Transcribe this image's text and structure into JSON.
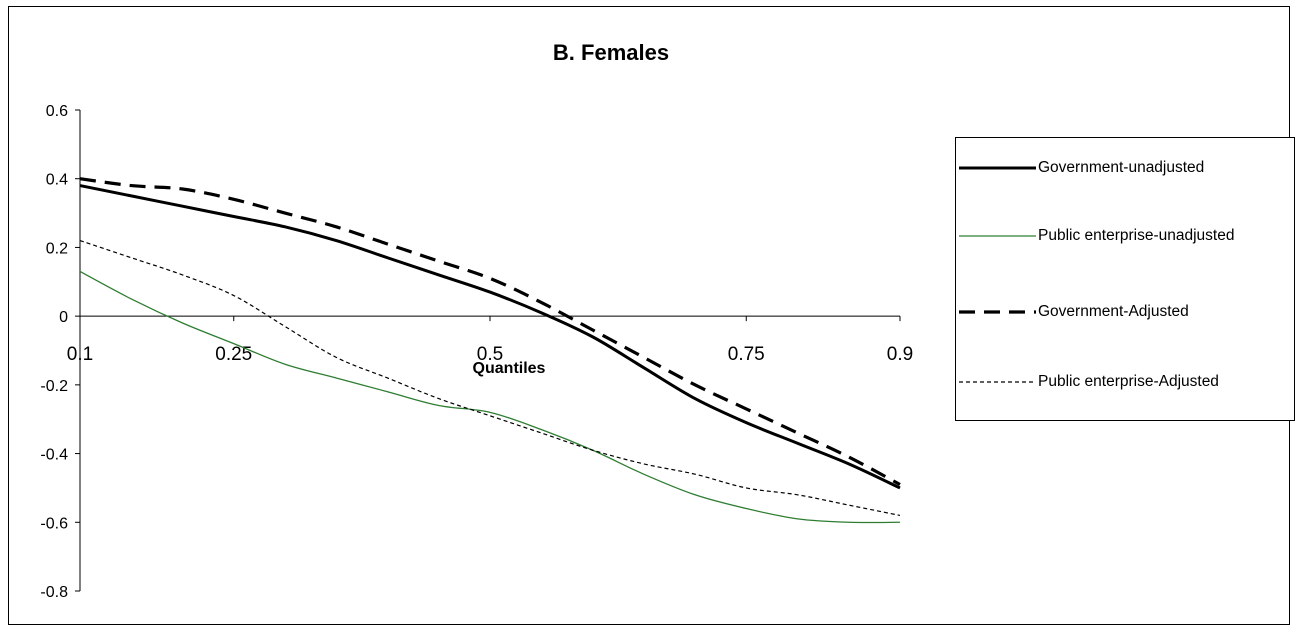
{
  "chart_data": {
    "type": "line",
    "title": "B. Females",
    "xlabel": "Quantiles",
    "ylabel": "",
    "x_ticks": [
      0.1,
      0.25,
      0.5,
      0.75,
      0.9
    ],
    "x_tick_labels": [
      "0.1",
      "0.25",
      "0.5",
      "0.75",
      "0.9"
    ],
    "y_ticks": [
      0.6,
      0.4,
      0.2,
      0,
      -0.2,
      -0.4,
      -0.6,
      -0.8
    ],
    "y_tick_labels": [
      "0.6",
      "0.4",
      "0.2",
      "0",
      "-0.2",
      "-0.4",
      "-0.6",
      "-0.8"
    ],
    "ylim": [
      -0.8,
      0.6
    ],
    "xlim": [
      0.1,
      0.9
    ],
    "grid": false,
    "legend_position": "right",
    "x": [
      0.1,
      0.15,
      0.2,
      0.25,
      0.3,
      0.35,
      0.4,
      0.45,
      0.5,
      0.55,
      0.6,
      0.65,
      0.7,
      0.75,
      0.8,
      0.85,
      0.9
    ],
    "series": [
      {
        "name": "Government-unadjusted",
        "color": "#000000",
        "style": "solid-thick",
        "values": [
          0.38,
          0.35,
          0.32,
          0.29,
          0.26,
          0.22,
          0.17,
          0.12,
          0.07,
          0.01,
          -0.06,
          -0.15,
          -0.24,
          -0.31,
          -0.37,
          -0.43,
          -0.5
        ]
      },
      {
        "name": "Public enterprise-unadjusted",
        "color": "#2e7d32",
        "style": "solid-thin",
        "values": [
          0.13,
          0.05,
          -0.02,
          -0.08,
          -0.14,
          -0.18,
          -0.22,
          -0.26,
          -0.28,
          -0.33,
          -0.39,
          -0.46,
          -0.52,
          -0.56,
          -0.59,
          -0.6,
          -0.6
        ]
      },
      {
        "name": "Government-Adjusted",
        "color": "#000000",
        "style": "dashed-thick",
        "values": [
          0.4,
          0.38,
          0.37,
          0.34,
          0.3,
          0.26,
          0.21,
          0.16,
          0.11,
          0.04,
          -0.04,
          -0.12,
          -0.2,
          -0.27,
          -0.34,
          -0.41,
          -0.49
        ]
      },
      {
        "name": "Public enterprise-Adjusted",
        "color": "#000000",
        "style": "dotted-thin",
        "values": [
          0.22,
          0.17,
          0.12,
          0.06,
          -0.03,
          -0.12,
          -0.18,
          -0.24,
          -0.29,
          -0.34,
          -0.39,
          -0.43,
          -0.46,
          -0.5,
          -0.52,
          -0.55,
          -0.58
        ]
      }
    ]
  }
}
